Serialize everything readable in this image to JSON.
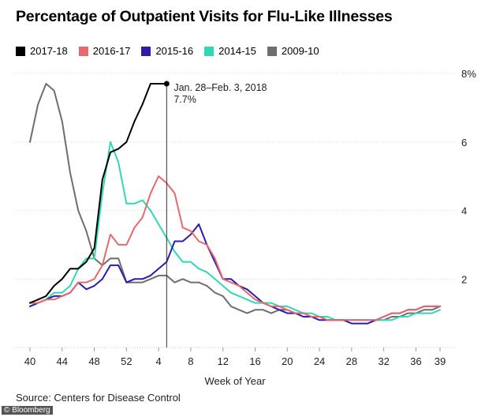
{
  "title": "Percentage of Outpatient Visits for Flu-Like Illnesses",
  "source": "Source: Centers for Disease Control",
  "credit": "© Bloomberg",
  "annotation": {
    "line1": "Jan. 28–Feb. 3, 2018",
    "line2": "7.7%"
  },
  "chart_data": {
    "type": "line",
    "title": "Percentage of Outpatient Visits for Flu-Like Illnesses",
    "xlabel": "Week of Year",
    "ylabel": "",
    "ylim": [
      0,
      8
    ],
    "y_ticks": [
      "8%",
      "6",
      "4",
      "2"
    ],
    "x_ticks": [
      "40",
      "44",
      "48",
      "52",
      "4",
      "8",
      "12",
      "16",
      "20",
      "24",
      "28",
      "32",
      "36",
      "39"
    ],
    "x_index_note": "x values are sequential week numbers starting at week 40 (index 0 = week 40, index 13 = week 1)",
    "legend_position": "top",
    "grid": "horizontal",
    "series": [
      {
        "name": "2017-18",
        "color": "#000000",
        "x": [
          0,
          1,
          2,
          3,
          4,
          5,
          6,
          7,
          8,
          9,
          10,
          11,
          12,
          13,
          14,
          15,
          16,
          17
        ],
        "values": [
          1.3,
          1.4,
          1.5,
          1.8,
          2.0,
          2.3,
          2.3,
          2.5,
          2.9,
          4.9,
          5.7,
          5.8,
          6.0,
          6.6,
          7.1,
          7.7,
          7.7,
          7.7
        ]
      },
      {
        "name": "2016-17",
        "color": "#e8686b",
        "x": [
          0,
          1,
          2,
          3,
          4,
          5,
          6,
          7,
          8,
          9,
          10,
          11,
          12,
          13,
          14,
          15,
          16,
          17,
          18,
          19,
          20,
          21,
          22,
          23,
          24,
          25,
          26,
          27,
          28,
          29,
          30,
          31,
          32,
          33,
          34,
          35,
          36,
          37,
          38,
          39,
          40,
          41,
          42,
          43,
          44,
          45,
          46,
          47,
          48,
          49,
          50,
          51
        ],
        "values": [
          1.3,
          1.3,
          1.4,
          1.4,
          1.5,
          1.6,
          1.9,
          1.9,
          2.0,
          2.4,
          3.3,
          3.0,
          3.0,
          3.5,
          3.8,
          4.5,
          5.0,
          4.8,
          4.5,
          3.5,
          3.4,
          3.1,
          3.0,
          2.6,
          2.0,
          1.9,
          1.8,
          1.6,
          1.4,
          1.3,
          1.2,
          1.2,
          1.1,
          1.0,
          1.0,
          0.9,
          0.9,
          0.8,
          0.8,
          0.8,
          0.8,
          0.8,
          0.8,
          0.8,
          0.9,
          1.0,
          1.0,
          1.1,
          1.1,
          1.2,
          1.2,
          1.2
        ]
      },
      {
        "name": "2015-16",
        "color": "#2b1cac",
        "x": [
          0,
          1,
          2,
          3,
          4,
          5,
          6,
          7,
          8,
          9,
          10,
          11,
          12,
          13,
          14,
          15,
          16,
          17,
          18,
          19,
          20,
          21,
          22,
          23,
          24,
          25,
          26,
          27,
          28,
          29,
          30,
          31,
          32,
          33,
          34,
          35,
          36,
          37,
          38,
          39,
          40,
          41,
          42,
          43,
          44,
          45,
          46,
          47,
          48,
          49,
          50,
          51
        ],
        "values": [
          1.2,
          1.3,
          1.4,
          1.5,
          1.5,
          1.6,
          1.9,
          1.7,
          1.8,
          2.0,
          2.4,
          2.4,
          1.9,
          2.0,
          2.0,
          2.1,
          2.3,
          2.5,
          3.1,
          3.1,
          3.3,
          3.6,
          3.0,
          2.5,
          2.0,
          2.0,
          1.8,
          1.7,
          1.5,
          1.3,
          1.2,
          1.1,
          1.0,
          1.0,
          0.9,
          0.9,
          0.8,
          0.8,
          0.8,
          0.8,
          0.7,
          0.7,
          0.7,
          0.8,
          0.9,
          1.0,
          1.0,
          1.1,
          1.1,
          1.2,
          1.2,
          1.2
        ]
      },
      {
        "name": "2014-15",
        "color": "#2fd9b3",
        "x": [
          0,
          1,
          2,
          3,
          4,
          5,
          6,
          7,
          8,
          9,
          10,
          11,
          12,
          13,
          14,
          15,
          16,
          17,
          18,
          19,
          20,
          21,
          22,
          23,
          24,
          25,
          26,
          27,
          28,
          29,
          30,
          31,
          32,
          33,
          34,
          35,
          36,
          37,
          38,
          39,
          40,
          41,
          42,
          43,
          44,
          45,
          46,
          47,
          48,
          49,
          50,
          51
        ],
        "values": [
          1.2,
          1.3,
          1.4,
          1.6,
          1.6,
          1.8,
          2.3,
          2.6,
          2.6,
          4.5,
          6.0,
          5.4,
          4.2,
          4.2,
          4.3,
          4.0,
          3.6,
          3.2,
          2.8,
          2.5,
          2.5,
          2.3,
          2.2,
          2.0,
          1.8,
          1.6,
          1.5,
          1.4,
          1.3,
          1.3,
          1.3,
          1.2,
          1.2,
          1.1,
          1.0,
          1.0,
          0.9,
          0.9,
          0.8,
          0.8,
          0.8,
          0.8,
          0.8,
          0.8,
          0.8,
          0.8,
          0.9,
          0.9,
          1.0,
          1.0,
          1.0,
          1.1
        ]
      },
      {
        "name": "2009-10",
        "color": "#6e6e6e",
        "x": [
          0,
          1,
          2,
          3,
          4,
          5,
          6,
          7,
          8,
          9,
          10,
          11,
          12,
          13,
          14,
          15,
          16,
          17,
          18,
          19,
          20,
          21,
          22,
          23,
          24,
          25,
          26,
          27,
          28,
          29,
          30,
          31,
          32,
          33,
          34,
          35,
          36,
          37,
          38,
          39,
          40,
          41,
          42,
          43,
          44,
          45,
          46,
          47,
          48,
          49,
          50,
          51
        ],
        "values": [
          6.0,
          7.1,
          7.7,
          7.5,
          6.6,
          5.1,
          4.0,
          3.4,
          2.6,
          2.4,
          2.6,
          2.6,
          1.9,
          1.9,
          1.9,
          2.0,
          2.1,
          2.1,
          1.9,
          2.0,
          1.9,
          1.9,
          1.8,
          1.6,
          1.5,
          1.2,
          1.1,
          1.0,
          1.1,
          1.1,
          1.0,
          1.1,
          1.1,
          1.0,
          1.0,
          0.9,
          0.9,
          0.8,
          0.8,
          0.8,
          0.8,
          0.8,
          0.8,
          0.8,
          0.8,
          0.9,
          0.9,
          1.0,
          1.0,
          1.1,
          1.1,
          1.2
        ]
      }
    ]
  }
}
